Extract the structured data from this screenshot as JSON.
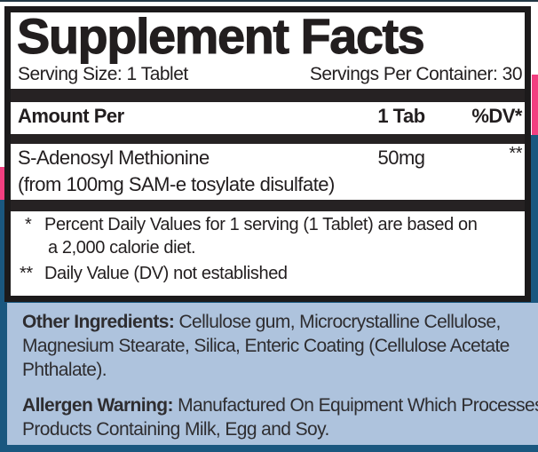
{
  "colors": {
    "pink": "#f23f80",
    "dark_blue": "#1a577f",
    "light_blue": "#aec3dd",
    "top_edge": "#223744"
  },
  "panel": {
    "title": "Supplement Facts",
    "serving_size": "Serving Size: 1 Tablet",
    "servings_per_container": "Servings Per Container: 30",
    "header": {
      "amount_per": "Amount Per",
      "per_serving": "1 Tab",
      "daily_value": "%DV*"
    },
    "nutrient": {
      "name": "S-Adenosyl Methionine",
      "detail": "(from 100mg SAM-e tosylate disulfate)",
      "amount": "50mg",
      "dv": "**"
    },
    "footnotes": {
      "line1_marker": "*",
      "line1_text": "Percent Daily Values for 1 serving (1 Tablet) are based on",
      "line2_text": "a 2,000 calorie diet.",
      "line3_marker": "**",
      "line3_text": "Daily Value (DV) not established"
    }
  },
  "info_box": {
    "other_ingredients": {
      "label": "Other Ingredients:",
      "line1_rest": " Cellulose gum, Microcrystalline Cellulose,",
      "line2": "Magnesium Stearate, Silica, Enteric Coating (Cellulose Acetate",
      "line3": "Phthalate)."
    },
    "allergen_warning": {
      "label": "Allergen Warning:",
      "line1_rest": " Manufactured On Equipment Which Processes",
      "line2": "Products Containing Milk, Egg and Soy."
    }
  }
}
